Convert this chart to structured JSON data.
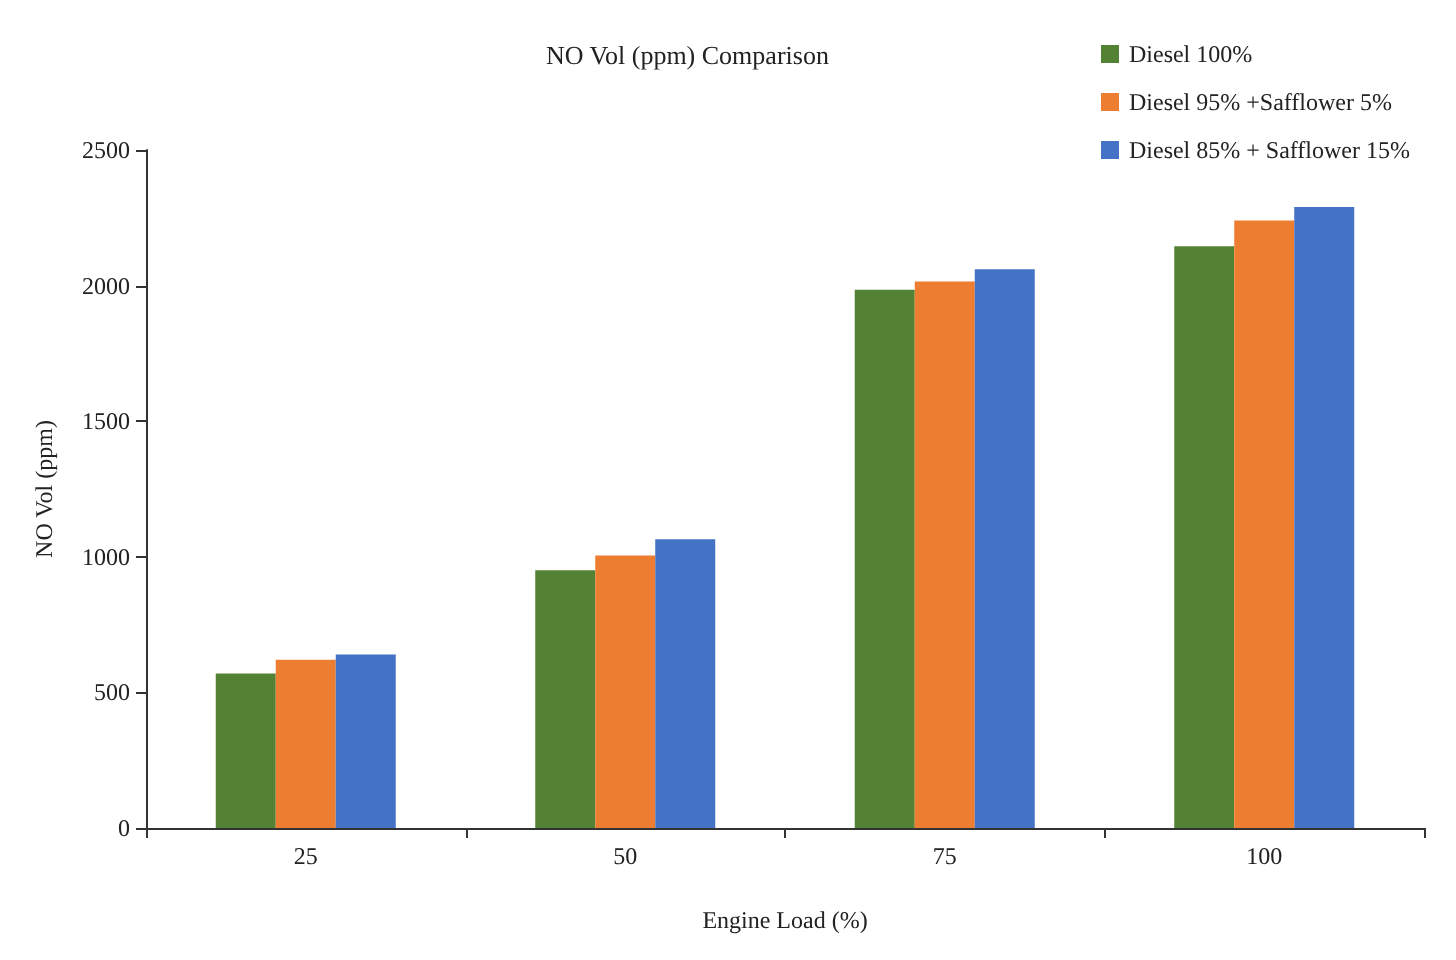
{
  "chart_data": {
    "type": "bar",
    "title": "NO Vol (ppm) Comparison",
    "xlabel": "Engine Load (%)",
    "ylabel": "NO Vol (ppm)",
    "categories": [
      "25",
      "50",
      "75",
      "100"
    ],
    "series": [
      {
        "name": "Diesel 100%",
        "color": "#548235",
        "values": [
          570,
          950,
          1985,
          2145
        ]
      },
      {
        "name": "Diesel 95% +Safflower 5%",
        "color": "#ed7d31",
        "values": [
          620,
          1005,
          2015,
          2240
        ]
      },
      {
        "name": "Diesel 85% + Safflower 15%",
        "color": "#4472c4",
        "values": [
          640,
          1065,
          2060,
          2290
        ]
      }
    ],
    "ylim": [
      0,
      2500
    ],
    "yticks": [
      0,
      500,
      1000,
      1500,
      2000,
      2500
    ],
    "grid": false,
    "legend": "top right"
  }
}
